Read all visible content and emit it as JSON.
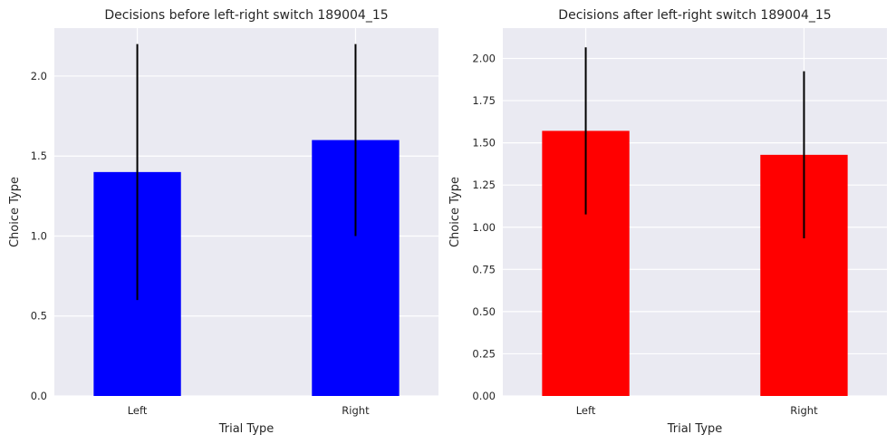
{
  "chart_data": [
    {
      "type": "bar",
      "title": "Decisions before left-right switch 189004_15",
      "xlabel": "Trial Type",
      "ylabel": "Choice Type",
      "categories": [
        "Left",
        "Right"
      ],
      "values": [
        1.4,
        1.6
      ],
      "error": [
        0.8,
        0.6
      ],
      "bar_color": "#0000ff",
      "ylim": [
        0,
        2.3
      ],
      "yticks": [
        0.0,
        0.5,
        1.0,
        1.5,
        2.0
      ],
      "ytick_labels": [
        "0.0",
        "0.5",
        "1.0",
        "1.5",
        "2.0"
      ],
      "grid": true
    },
    {
      "type": "bar",
      "title": "Decisions after left-right switch 189004_15",
      "xlabel": "Trial Type",
      "ylabel": "Choice Type",
      "categories": [
        "Left",
        "Right"
      ],
      "values": [
        1.571,
        1.429
      ],
      "error": [
        0.495,
        0.495
      ],
      "bar_color": "#ff0000",
      "ylim": [
        0,
        2.18
      ],
      "yticks": [
        0.0,
        0.25,
        0.5,
        0.75,
        1.0,
        1.25,
        1.5,
        1.75,
        2.0
      ],
      "ytick_labels": [
        "0.00",
        "0.25",
        "0.50",
        "0.75",
        "1.00",
        "1.25",
        "1.50",
        "1.75",
        "2.00"
      ],
      "grid": true
    }
  ],
  "style": {
    "plot_background": "#eaeaf2",
    "grid_color": "#ffffff",
    "error_color": "#000000"
  }
}
